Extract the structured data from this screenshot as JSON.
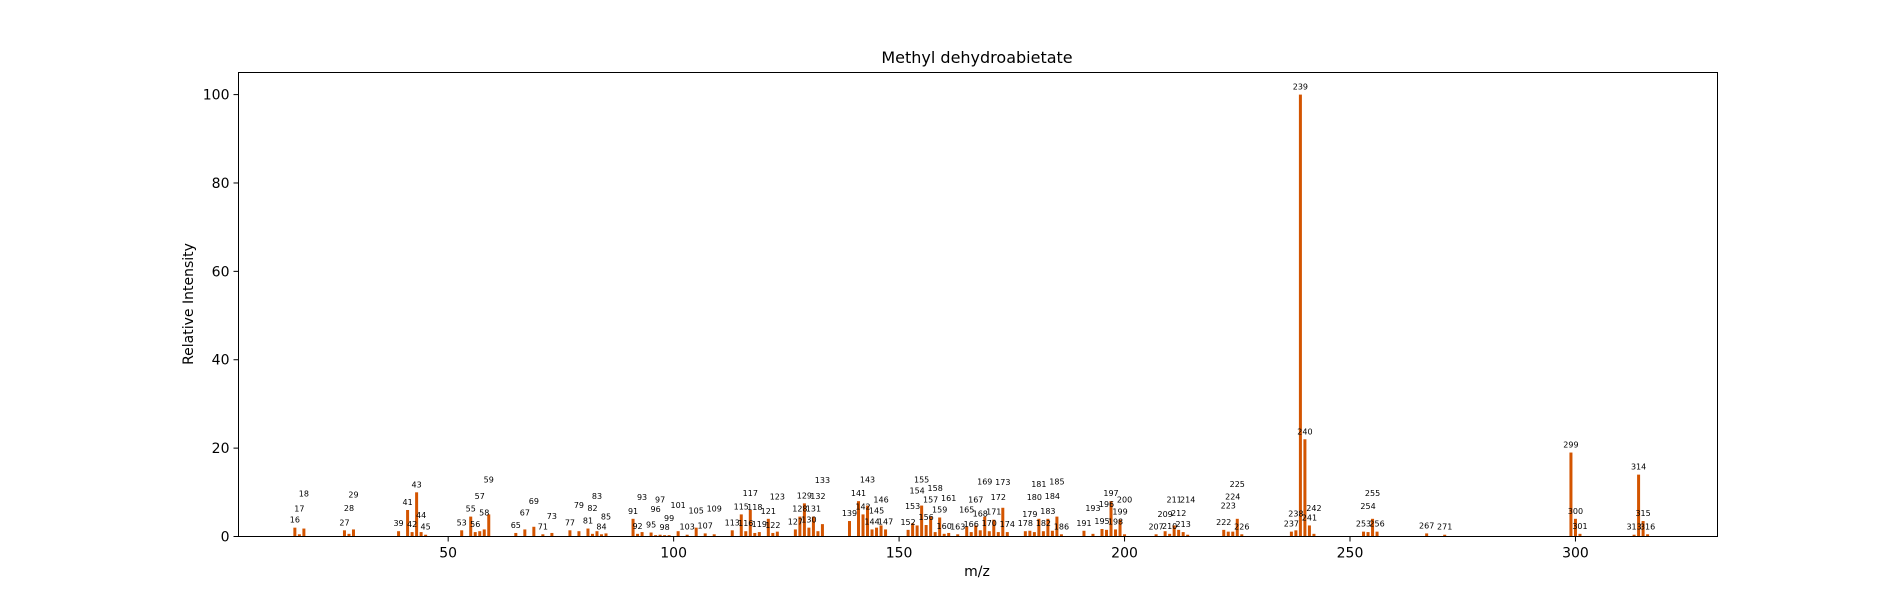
{
  "chart_data": {
    "type": "bar",
    "title": "Methyl dehydroabietate",
    "xlabel": "m/z",
    "ylabel": "Relative Intensity",
    "xlim": [
      3.5,
      331.5
    ],
    "ylim": [
      0,
      105
    ],
    "xticks": [
      50,
      100,
      150,
      200,
      250,
      300
    ],
    "yticks": [
      0,
      20,
      40,
      60,
      80,
      100
    ],
    "grid": false,
    "bar_color": "#d35400",
    "peaks": [
      {
        "mz": 16,
        "y": 2.0
      },
      {
        "mz": 17,
        "y": 0.5
      },
      {
        "mz": 18,
        "y": 1.8
      },
      {
        "mz": 27,
        "y": 1.4
      },
      {
        "mz": 28,
        "y": 0.6
      },
      {
        "mz": 29,
        "y": 1.6
      },
      {
        "mz": 39,
        "y": 1.2
      },
      {
        "mz": 41,
        "y": 6.0
      },
      {
        "mz": 42,
        "y": 1.0
      },
      {
        "mz": 43,
        "y": 10.0
      },
      {
        "mz": 44,
        "y": 1.0
      },
      {
        "mz": 45,
        "y": 0.4
      },
      {
        "mz": 53,
        "y": 1.4
      },
      {
        "mz": 55,
        "y": 4.5
      },
      {
        "mz": 56,
        "y": 1.0
      },
      {
        "mz": 57,
        "y": 1.2
      },
      {
        "mz": 58,
        "y": 1.6
      },
      {
        "mz": 59,
        "y": 5.0
      },
      {
        "mz": 65,
        "y": 0.8
      },
      {
        "mz": 67,
        "y": 1.6
      },
      {
        "mz": 69,
        "y": 2.2
      },
      {
        "mz": 71,
        "y": 0.5
      },
      {
        "mz": 73,
        "y": 0.8
      },
      {
        "mz": 77,
        "y": 1.4
      },
      {
        "mz": 79,
        "y": 1.2
      },
      {
        "mz": 81,
        "y": 1.8
      },
      {
        "mz": 82,
        "y": 0.6
      },
      {
        "mz": 83,
        "y": 1.2
      },
      {
        "mz": 84,
        "y": 0.5
      },
      {
        "mz": 85,
        "y": 0.7
      },
      {
        "mz": 91,
        "y": 4.0
      },
      {
        "mz": 92,
        "y": 0.6
      },
      {
        "mz": 93,
        "y": 1.0
      },
      {
        "mz": 95,
        "y": 0.9
      },
      {
        "mz": 96,
        "y": 0.3
      },
      {
        "mz": 97,
        "y": 0.4
      },
      {
        "mz": 98,
        "y": 0.3
      },
      {
        "mz": 99,
        "y": 0.3
      },
      {
        "mz": 101,
        "y": 1.2
      },
      {
        "mz": 103,
        "y": 0.4
      },
      {
        "mz": 105,
        "y": 2.0
      },
      {
        "mz": 107,
        "y": 0.7
      },
      {
        "mz": 109,
        "y": 0.5
      },
      {
        "mz": 113,
        "y": 1.4
      },
      {
        "mz": 115,
        "y": 5.0
      },
      {
        "mz": 116,
        "y": 1.2
      },
      {
        "mz": 117,
        "y": 6.0
      },
      {
        "mz": 118,
        "y": 0.8
      },
      {
        "mz": 119,
        "y": 1.0
      },
      {
        "mz": 121,
        "y": 4.0
      },
      {
        "mz": 122,
        "y": 0.8
      },
      {
        "mz": 123,
        "y": 1.1
      },
      {
        "mz": 127,
        "y": 1.6
      },
      {
        "mz": 128,
        "y": 4.5
      },
      {
        "mz": 129,
        "y": 7.5
      },
      {
        "mz": 130,
        "y": 2.0
      },
      {
        "mz": 131,
        "y": 4.5
      },
      {
        "mz": 132,
        "y": 1.2
      },
      {
        "mz": 133,
        "y": 2.8
      },
      {
        "mz": 139,
        "y": 3.5
      },
      {
        "mz": 141,
        "y": 8.0
      },
      {
        "mz": 142,
        "y": 5.0
      },
      {
        "mz": 143,
        "y": 7.0
      },
      {
        "mz": 144,
        "y": 1.6
      },
      {
        "mz": 145,
        "y": 2.0
      },
      {
        "mz": 146,
        "y": 2.5
      },
      {
        "mz": 147,
        "y": 1.6
      },
      {
        "mz": 152,
        "y": 1.5
      },
      {
        "mz": 153,
        "y": 3.0
      },
      {
        "mz": 154,
        "y": 2.5
      },
      {
        "mz": 155,
        "y": 7.0
      },
      {
        "mz": 156,
        "y": 2.6
      },
      {
        "mz": 157,
        "y": 4.5
      },
      {
        "mz": 158,
        "y": 1.0
      },
      {
        "mz": 159,
        "y": 4.3
      },
      {
        "mz": 160,
        "y": 0.6
      },
      {
        "mz": 161,
        "y": 0.8
      },
      {
        "mz": 163,
        "y": 0.5
      },
      {
        "mz": 165,
        "y": 2.3
      },
      {
        "mz": 166,
        "y": 1.0
      },
      {
        "mz": 167,
        "y": 2.5
      },
      {
        "mz": 168,
        "y": 1.4
      },
      {
        "mz": 169,
        "y": 4.5
      },
      {
        "mz": 170,
        "y": 1.2
      },
      {
        "mz": 171,
        "y": 3.8
      },
      {
        "mz": 172,
        "y": 1.0
      },
      {
        "mz": 173,
        "y": 6.5
      },
      {
        "mz": 174,
        "y": 1.0
      },
      {
        "mz": 178,
        "y": 1.2
      },
      {
        "mz": 179,
        "y": 1.3
      },
      {
        "mz": 180,
        "y": 1.0
      },
      {
        "mz": 181,
        "y": 4.0
      },
      {
        "mz": 182,
        "y": 1.2
      },
      {
        "mz": 183,
        "y": 4.0
      },
      {
        "mz": 184,
        "y": 1.3
      },
      {
        "mz": 185,
        "y": 4.5
      },
      {
        "mz": 186,
        "y": 0.5
      },
      {
        "mz": 191,
        "y": 1.3
      },
      {
        "mz": 193,
        "y": 0.6
      },
      {
        "mz": 195,
        "y": 1.7
      },
      {
        "mz": 196,
        "y": 1.5
      },
      {
        "mz": 197,
        "y": 8.0
      },
      {
        "mz": 198,
        "y": 1.6
      },
      {
        "mz": 199,
        "y": 3.8
      },
      {
        "mz": 200,
        "y": 0.5
      },
      {
        "mz": 207,
        "y": 0.5
      },
      {
        "mz": 209,
        "y": 1.2
      },
      {
        "mz": 210,
        "y": 0.6
      },
      {
        "mz": 211,
        "y": 2.5
      },
      {
        "mz": 212,
        "y": 1.5
      },
      {
        "mz": 213,
        "y": 1.0
      },
      {
        "mz": 214,
        "y": 0.4
      },
      {
        "mz": 222,
        "y": 1.5
      },
      {
        "mz": 223,
        "y": 1.1
      },
      {
        "mz": 224,
        "y": 1.1
      },
      {
        "mz": 225,
        "y": 4.0
      },
      {
        "mz": 226,
        "y": 0.5
      },
      {
        "mz": 237,
        "y": 1.1
      },
      {
        "mz": 238,
        "y": 1.4
      },
      {
        "mz": 239,
        "y": 100.0
      },
      {
        "mz": 240,
        "y": 22.0
      },
      {
        "mz": 241,
        "y": 2.5
      },
      {
        "mz": 242,
        "y": 0.6
      },
      {
        "mz": 253,
        "y": 1.1
      },
      {
        "mz": 254,
        "y": 1.0
      },
      {
        "mz": 255,
        "y": 4.0
      },
      {
        "mz": 256,
        "y": 1.1
      },
      {
        "mz": 267,
        "y": 0.7
      },
      {
        "mz": 271,
        "y": 0.4
      },
      {
        "mz": 299,
        "y": 19.0
      },
      {
        "mz": 300,
        "y": 4.0
      },
      {
        "mz": 301,
        "y": 0.6
      },
      {
        "mz": 313,
        "y": 0.4
      },
      {
        "mz": 314,
        "y": 14.0
      },
      {
        "mz": 315,
        "y": 3.5
      },
      {
        "mz": 316,
        "y": 0.5
      }
    ]
  }
}
